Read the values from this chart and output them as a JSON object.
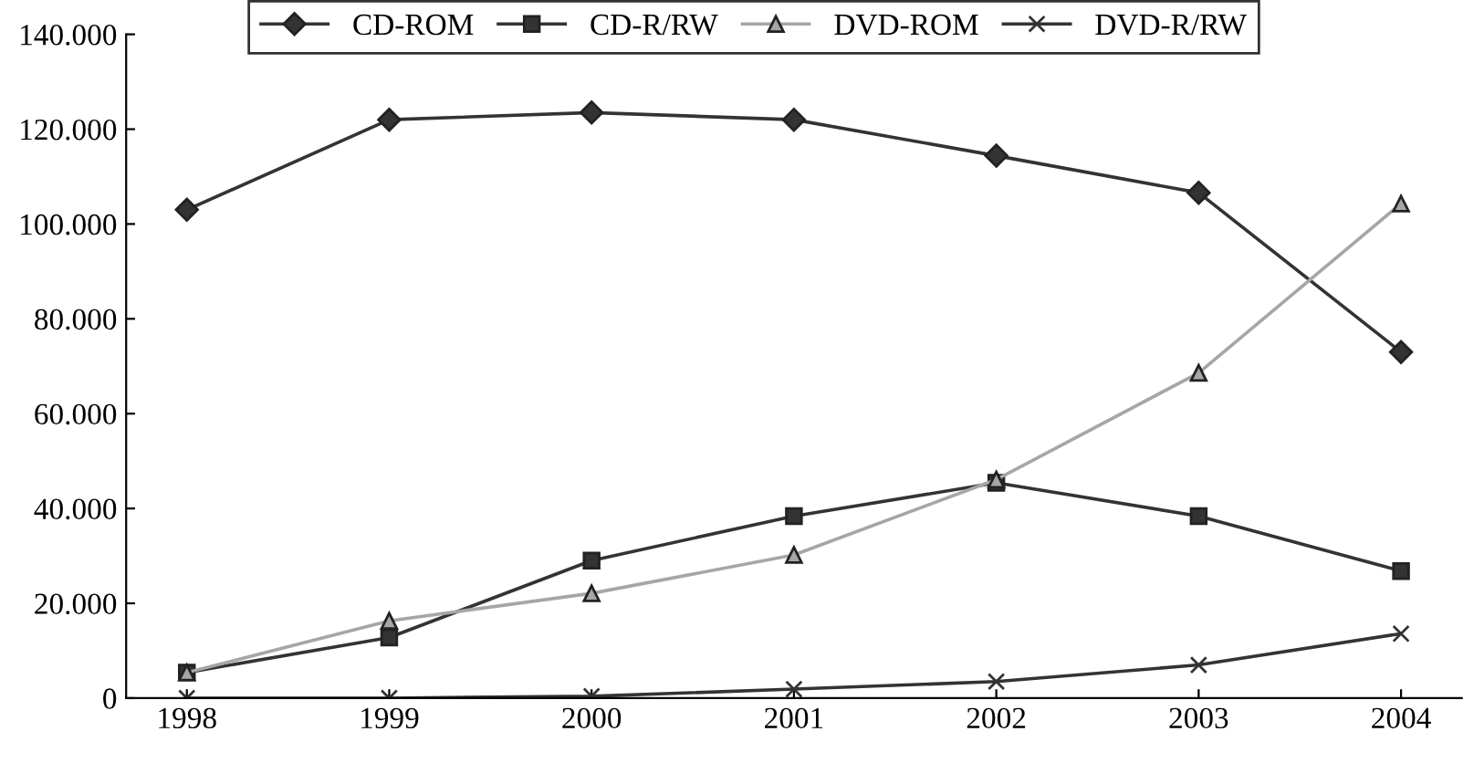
{
  "chart_data": {
    "type": "line",
    "categories": [
      "1998",
      "1999",
      "2000",
      "2001",
      "2002",
      "2003",
      "2004"
    ],
    "series": [
      {
        "name": "CD-ROM",
        "color": "#333333",
        "marker": "diamond",
        "values": [
          103000,
          122000,
          123500,
          122000,
          114400,
          106600,
          73000
        ]
      },
      {
        "name": "CD-R/RW",
        "color": "#333333",
        "marker": "square",
        "values": [
          5400,
          12800,
          29000,
          38400,
          45400,
          38400,
          26800
        ]
      },
      {
        "name": "DVD-ROM",
        "color": "#a6a6a6",
        "marker": "triangle",
        "values": [
          5400,
          16300,
          22100,
          30200,
          46100,
          68600,
          104300
        ]
      },
      {
        "name": "DVD-R/RW",
        "color": "#333333",
        "marker": "cross",
        "values": [
          0,
          0,
          400,
          1900,
          3500,
          7000,
          13600
        ]
      }
    ],
    "ylim": [
      0,
      140000
    ],
    "yticks": [
      0,
      {
        "value": 20000,
        "label": "20.000"
      },
      {
        "value": 40000,
        "label": "40.000"
      },
      {
        "value": 60000,
        "label": "60.000"
      },
      {
        "value": 80000,
        "label": "80.000"
      },
      {
        "value": 100000,
        "label": "100.000"
      },
      {
        "value": 120000,
        "label": "120.000"
      },
      {
        "value": 140000,
        "label": "140.000"
      }
    ],
    "grid": false,
    "legend": "top",
    "line_style": "solid"
  }
}
